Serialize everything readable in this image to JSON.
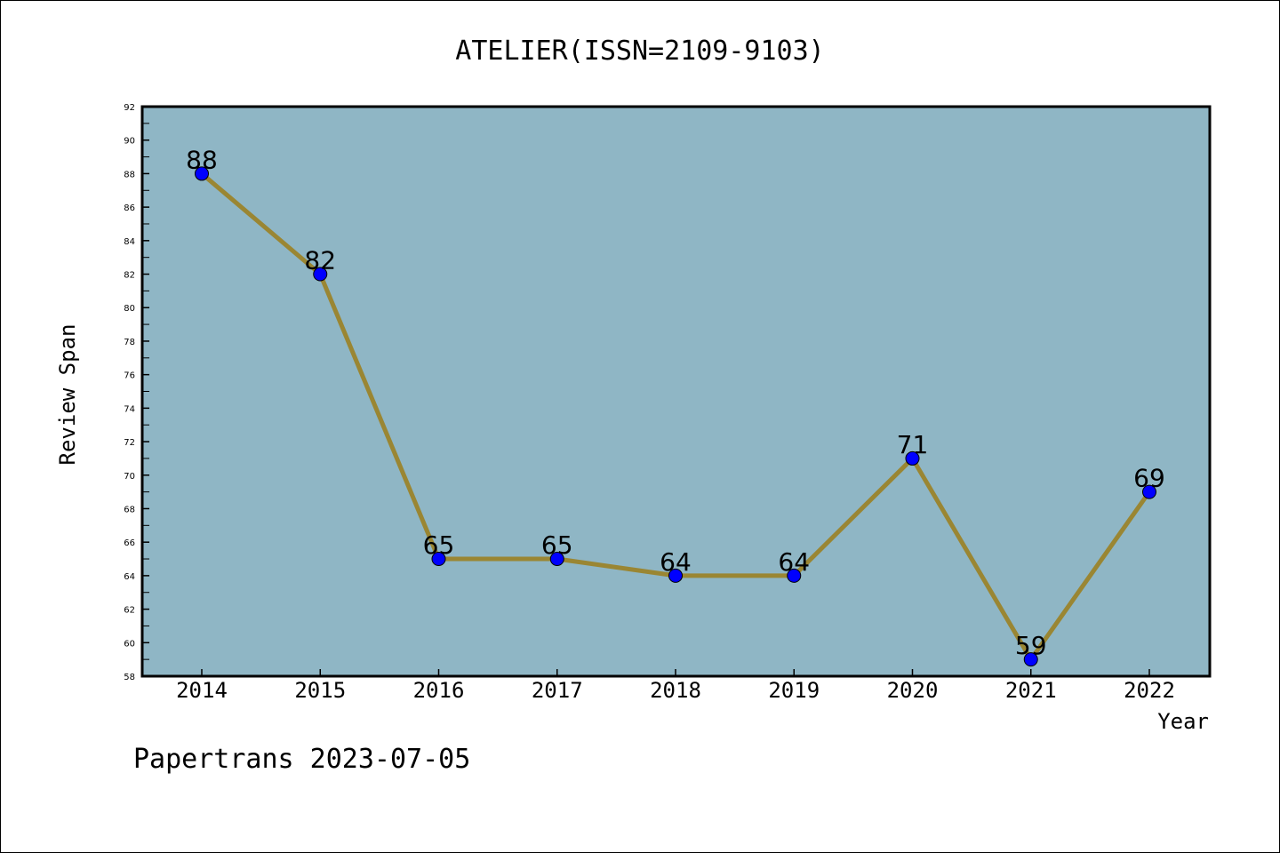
{
  "chart_data": {
    "type": "line",
    "title": "ATELIER(ISSN=2109-9103)",
    "xlabel": "Year",
    "ylabel": "Review Span",
    "categories": [
      "2014",
      "2015",
      "2016",
      "2017",
      "2018",
      "2019",
      "2020",
      "2021",
      "2022"
    ],
    "series": [
      {
        "values": [
          88,
          82,
          65,
          65,
          64,
          64,
          71,
          59,
          69
        ]
      }
    ],
    "ylim": [
      58,
      92
    ],
    "y_ticks": [
      "58",
      "60",
      "62",
      "64",
      "66",
      "68",
      "70",
      "72",
      "74",
      "76",
      "78",
      "80",
      "82",
      "84",
      "86",
      "88",
      "90",
      "92"
    ],
    "data_labels": [
      "88",
      "82",
      "65",
      "65",
      "64",
      "64",
      "71",
      "59",
      "69"
    ],
    "grid": false,
    "colors": {
      "plot_bg": "#8fb6c5",
      "line": "#9a8633",
      "marker": "#0000ff"
    }
  },
  "footer": "Papertrans 2023-07-05"
}
